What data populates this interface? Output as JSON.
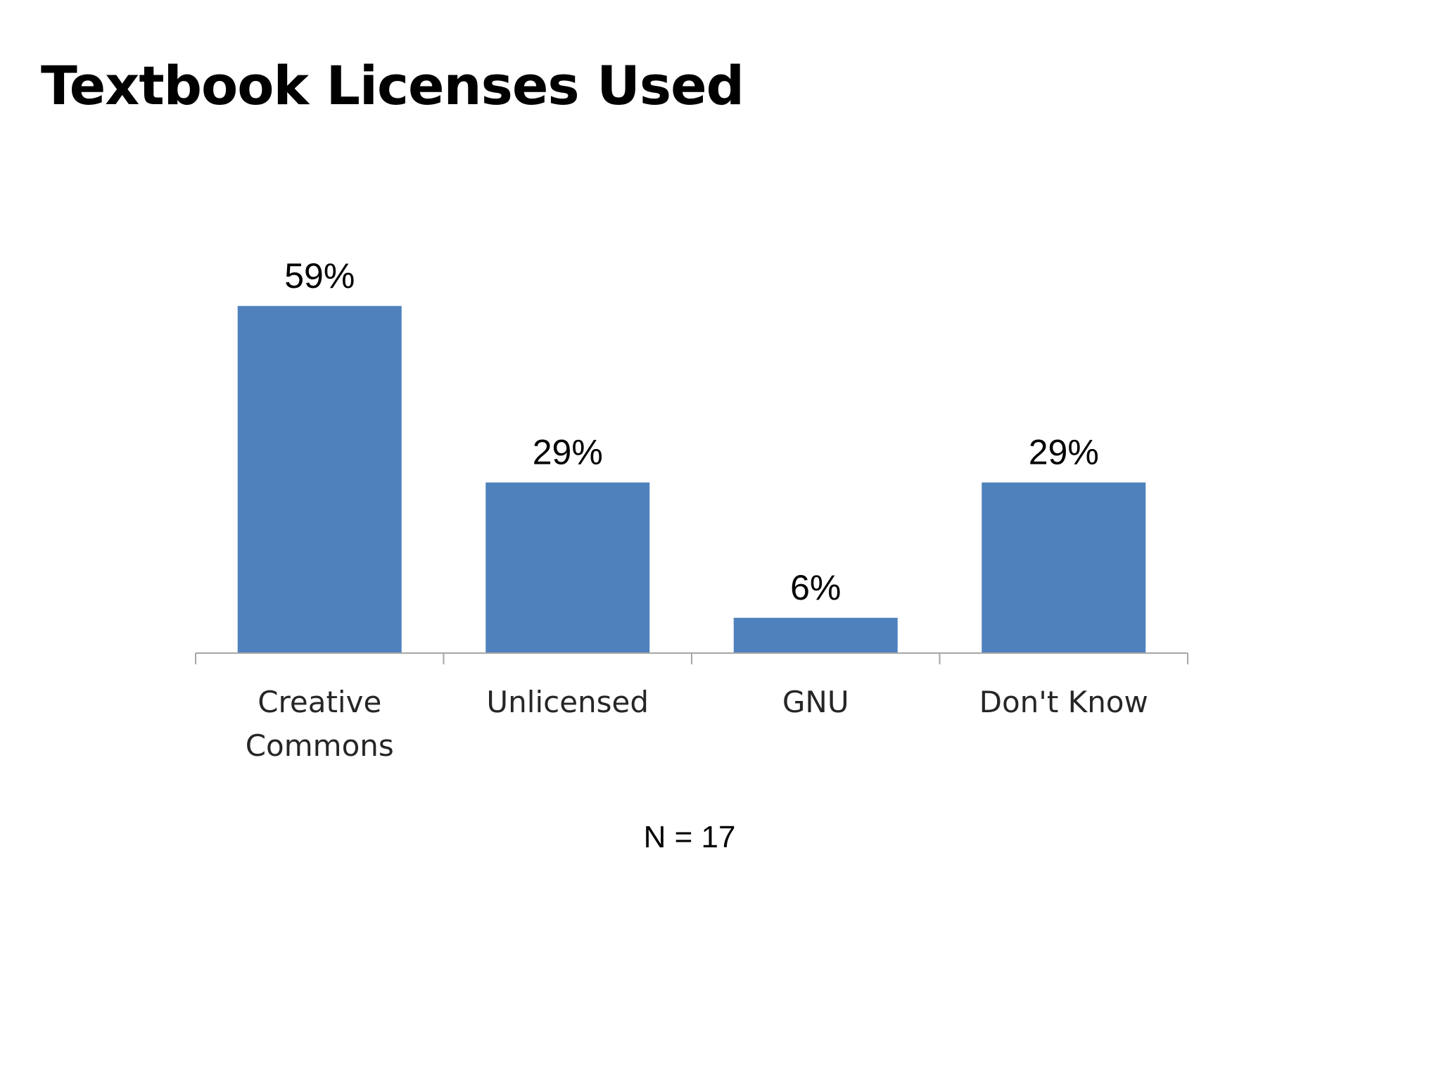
{
  "title": "Textbook Licenses Used",
  "note": "N = 17",
  "colors": {
    "bar": "#4F81BD",
    "axis": "#A6A6A6",
    "text": "#000000",
    "category_text": "#262626"
  },
  "chart_data": {
    "type": "bar",
    "categories": [
      [
        "Creative",
        "Commons"
      ],
      [
        "Unlicensed"
      ],
      [
        "GNU"
      ],
      [
        "Don't Know"
      ]
    ],
    "values": [
      59,
      29,
      6,
      29
    ],
    "data_labels": [
      "59%",
      "29%",
      "6%",
      "29%"
    ],
    "unit": "%",
    "ylim": [
      0,
      65
    ],
    "grid": false,
    "legend": "none",
    "y_axis_visible": false
  }
}
